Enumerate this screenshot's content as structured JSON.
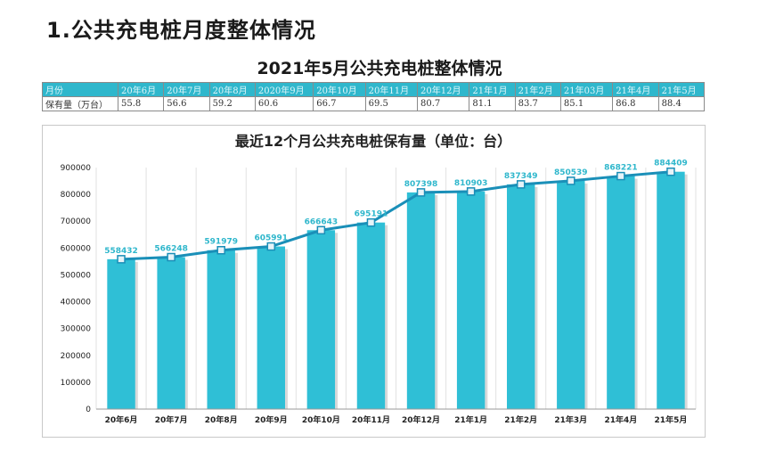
{
  "heading": "1.公共充电桩月度整体情况",
  "table": {
    "title": "2021年5月公共充电桩整体情况",
    "header_row": [
      "月份",
      "20年6月",
      "20年7月",
      "20年8月",
      "2020年9月",
      "20年10月",
      "20年11月",
      "20年12月",
      "21年1月",
      "21年2月",
      "21年03月",
      "21年4月",
      "21年5月"
    ],
    "value_row": [
      "保有量（万台）",
      "55.8",
      "56.6",
      "59.2",
      "60.6",
      "66.7",
      "69.5",
      "80.7",
      "81.1",
      "83.7",
      "85.1",
      "86.8",
      "88.4"
    ]
  },
  "chart_data": {
    "type": "bar",
    "title": "最近12个月公共充电桩保有量（单位：台）",
    "categories": [
      "20年6月",
      "20年7月",
      "20年8月",
      "20年9月",
      "20年10月",
      "20年11月",
      "20年12月",
      "21年1月",
      "21年2月",
      "21年3月",
      "21年4月",
      "21年5月"
    ],
    "values": [
      558432,
      566248,
      591979,
      605991,
      666643,
      695191,
      807398,
      810903,
      837349,
      850539,
      868221,
      884409
    ],
    "data_labels": [
      "558432",
      "566248",
      "591979",
      "605991",
      "666643",
      "695191",
      "807398",
      "810903",
      "837349",
      "850539",
      "868221",
      "884409"
    ],
    "overlay_line": true,
    "ylim": [
      0,
      900000
    ],
    "yticks": [
      0,
      100000,
      200000,
      300000,
      400000,
      500000,
      600000,
      700000,
      800000,
      900000
    ],
    "ytick_labels": [
      "0",
      "100000",
      "200000",
      "300000",
      "400000",
      "500000",
      "600000",
      "700000",
      "800000",
      "900000"
    ],
    "grid": "vertical",
    "colors": {
      "bar": "#2fbfd6",
      "line": "#1a8fb8",
      "marker_fill": "#e6f3f8",
      "label": "#2fb7cc"
    }
  }
}
